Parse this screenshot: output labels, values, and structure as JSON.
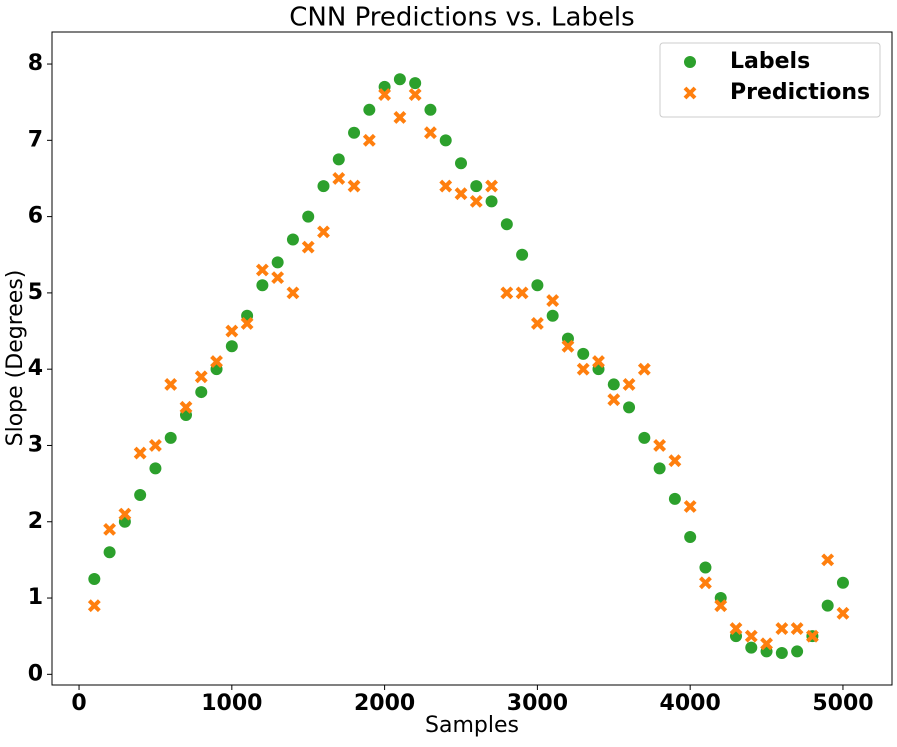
{
  "chart_data": {
    "type": "scatter",
    "title": "CNN Predictions vs. Labels",
    "x_label": "Samples",
    "y_label": "Slope (Degrees)",
    "x": [
      100,
      200,
      300,
      400,
      500,
      600,
      700,
      800,
      900,
      1000,
      1100,
      1200,
      1300,
      1400,
      1500,
      1600,
      1700,
      1800,
      1900,
      2000,
      2100,
      2200,
      2300,
      2400,
      2500,
      2600,
      2700,
      2800,
      2900,
      3000,
      3100,
      3200,
      3300,
      3400,
      3500,
      3600,
      3700,
      3800,
      3900,
      4000,
      4100,
      4200,
      4300,
      4400,
      4500,
      4600,
      4700,
      4800,
      4900,
      5000
    ],
    "series": [
      {
        "name": "Labels",
        "marker": "circle",
        "color": "#2ca02c",
        "values": [
          1.25,
          1.6,
          2.0,
          2.35,
          2.7,
          3.1,
          3.4,
          3.7,
          4.0,
          4.3,
          4.7,
          5.1,
          5.4,
          5.7,
          6.0,
          6.4,
          6.75,
          7.1,
          7.4,
          7.7,
          7.8,
          7.75,
          7.4,
          7.0,
          6.7,
          6.4,
          6.2,
          5.9,
          5.5,
          5.1,
          4.7,
          4.4,
          4.2,
          4.0,
          3.8,
          3.5,
          3.1,
          2.7,
          2.3,
          1.8,
          1.4,
          1.0,
          0.5,
          0.35,
          0.3,
          0.28,
          0.3,
          0.5,
          0.9,
          1.2
        ]
      },
      {
        "name": "Predictions",
        "marker": "x",
        "color": "#ff7f0e",
        "values": [
          0.9,
          1.9,
          2.1,
          2.9,
          3.0,
          3.8,
          3.5,
          3.9,
          4.1,
          4.5,
          4.6,
          5.3,
          5.2,
          5.0,
          5.6,
          5.8,
          6.5,
          6.4,
          7.0,
          7.6,
          7.3,
          7.6,
          7.1,
          6.4,
          6.3,
          6.2,
          6.4,
          5.0,
          5.0,
          4.6,
          4.9,
          4.3,
          4.0,
          4.1,
          3.6,
          3.8,
          4.0,
          3.0,
          2.8,
          2.2,
          1.2,
          0.9,
          0.6,
          0.5,
          0.4,
          0.6,
          0.6,
          0.5,
          1.5,
          0.8
        ]
      }
    ],
    "xlim": [
      -177,
      5321
    ],
    "xticks": [
      0,
      1000,
      2000,
      3000,
      4000,
      5000
    ],
    "ylim": [
      -0.14,
      8.42
    ],
    "yticks": [
      0,
      1,
      2,
      3,
      4,
      5,
      6,
      7,
      8
    ],
    "legend": "upper right",
    "grid": false
  }
}
